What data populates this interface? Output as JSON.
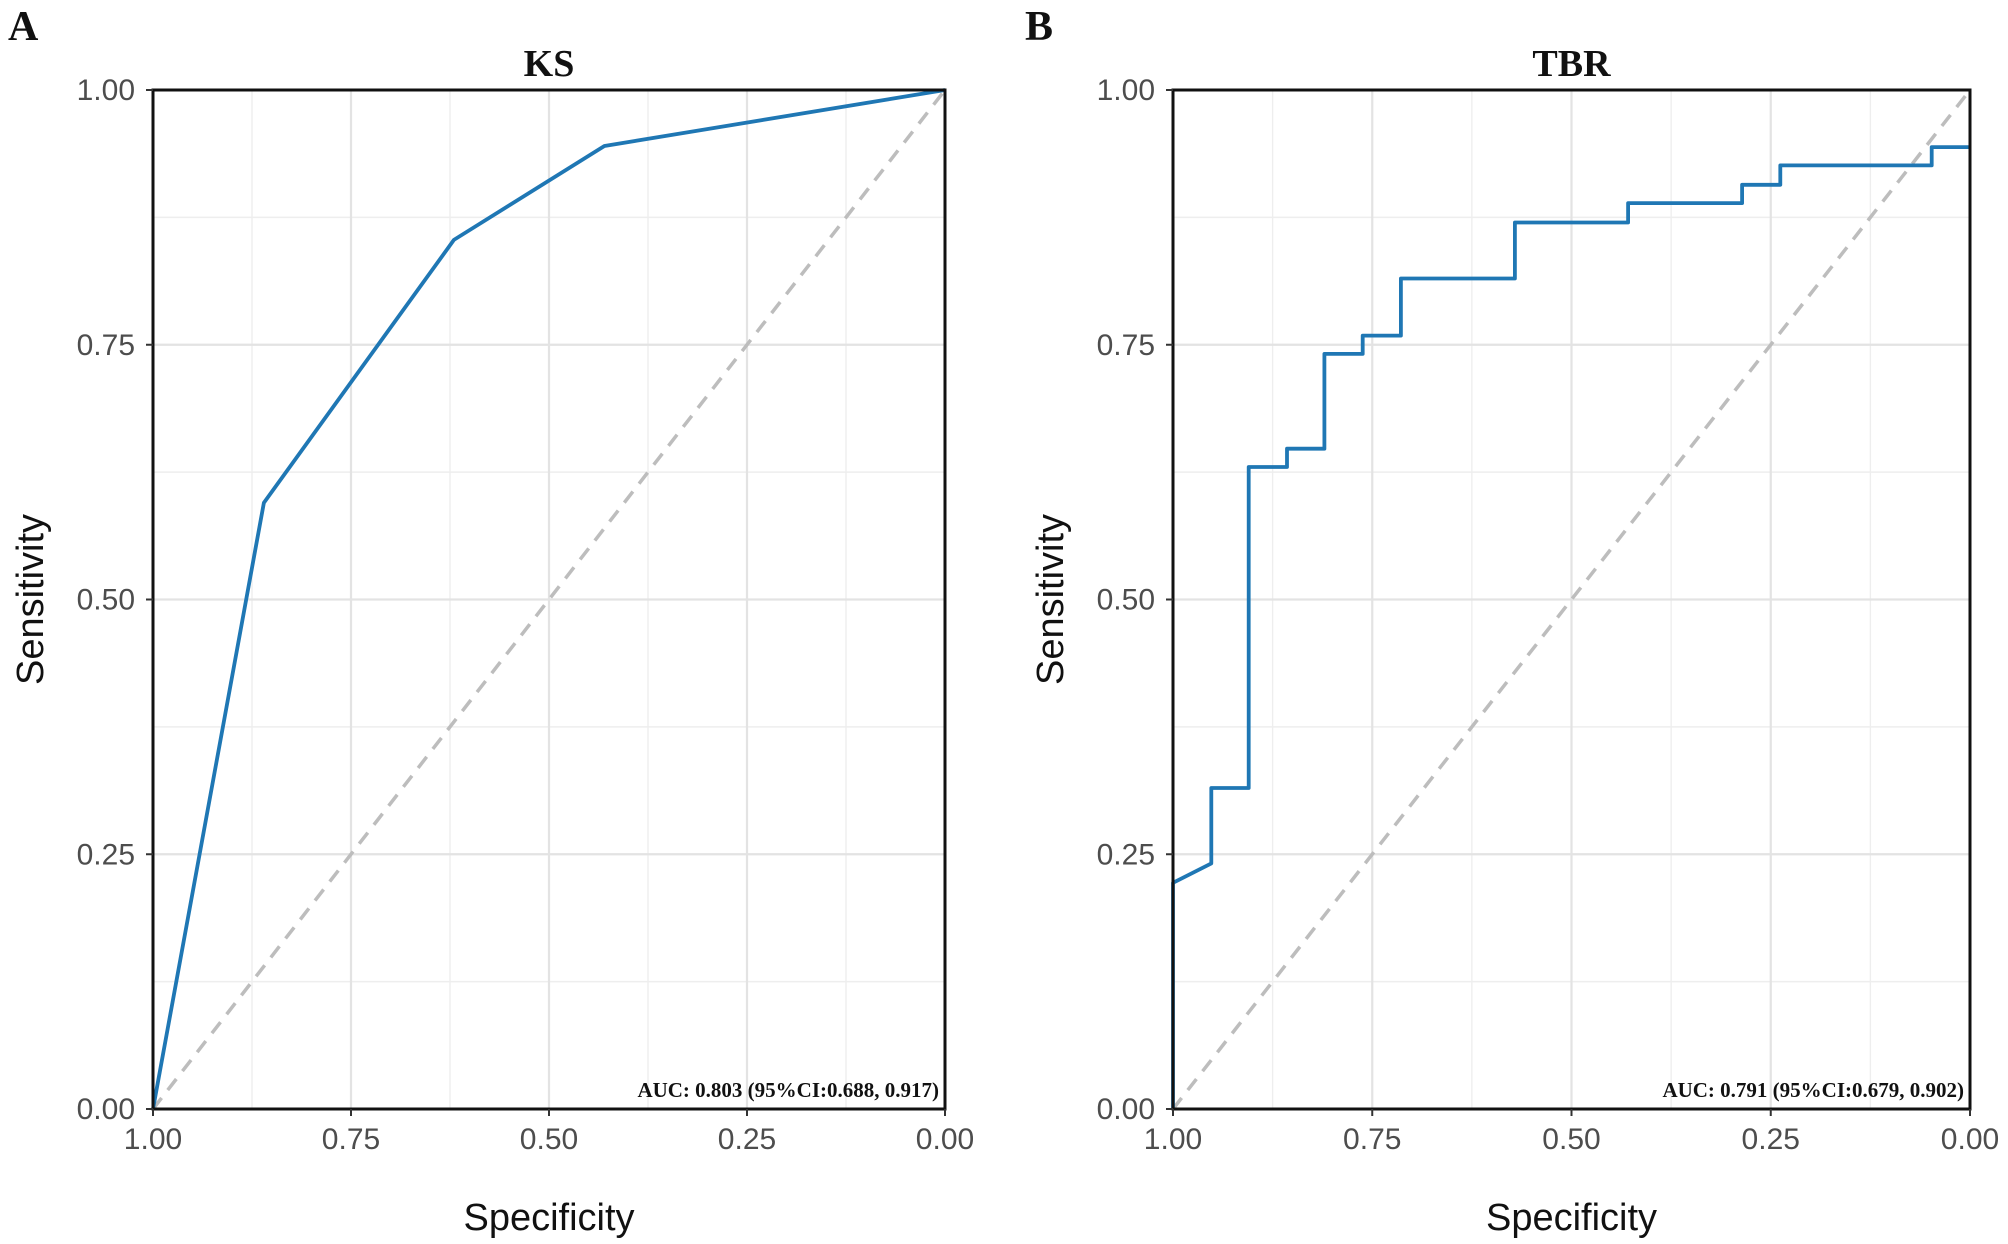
{
  "colors": {
    "roc_line": "#1f77b4",
    "diagonal": "#bdbdbd"
  },
  "chart_data": [
    {
      "type": "line",
      "panel_label": "A",
      "title": "KS",
      "xlabel": "Specificity",
      "ylabel": "Sensitivity",
      "xlim": [
        1.0,
        0.0
      ],
      "ylim": [
        0.0,
        1.0
      ],
      "x_reversed": true,
      "x_ticks": [
        "1.00",
        "0.75",
        "0.50",
        "0.25",
        "0.00"
      ],
      "y_ticks": [
        "0.00",
        "0.25",
        "0.50",
        "0.75",
        "1.00"
      ],
      "grid": true,
      "reference_line": "diagonal dashed",
      "annotation": "AUC: 0.803 (95%CI:0.688, 0.917)",
      "series": [
        {
          "name": "KS",
          "specificity": [
            1.0,
            0.86,
            0.62,
            0.43,
            0.0
          ],
          "sensitivity": [
            0.0,
            0.595,
            0.853,
            0.945,
            1.0
          ]
        }
      ]
    },
    {
      "type": "line",
      "panel_label": "B",
      "title": "TBR",
      "xlabel": "Specificity",
      "ylabel": "Sensitivity",
      "xlim": [
        1.0,
        0.0
      ],
      "ylim": [
        0.0,
        1.0
      ],
      "x_reversed": true,
      "x_ticks": [
        "1.00",
        "0.75",
        "0.50",
        "0.25",
        "0.00"
      ],
      "y_ticks": [
        "0.00",
        "0.25",
        "0.50",
        "0.75",
        "1.00"
      ],
      "grid": true,
      "reference_line": "diagonal dashed",
      "annotation": "AUC: 0.791 (95%CI:0.679, 0.902)",
      "series": [
        {
          "name": "TBR",
          "specificity": [
            1.0,
            1.0,
            0.952,
            0.952,
            0.905,
            0.905,
            0.857,
            0.857,
            0.81,
            0.81,
            0.762,
            0.762,
            0.714,
            0.714,
            0.571,
            0.571,
            0.429,
            0.429,
            0.286,
            0.286,
            0.238,
            0.238,
            0.048,
            0.048,
            0.0
          ],
          "sensitivity": [
            0.0,
            0.222,
            0.241,
            0.315,
            0.315,
            0.63,
            0.63,
            0.648,
            0.648,
            0.741,
            0.741,
            0.759,
            0.759,
            0.815,
            0.815,
            0.87,
            0.87,
            0.889,
            0.889,
            0.907,
            0.907,
            0.926,
            0.926,
            0.944,
            0.944
          ]
        }
      ]
    }
  ]
}
